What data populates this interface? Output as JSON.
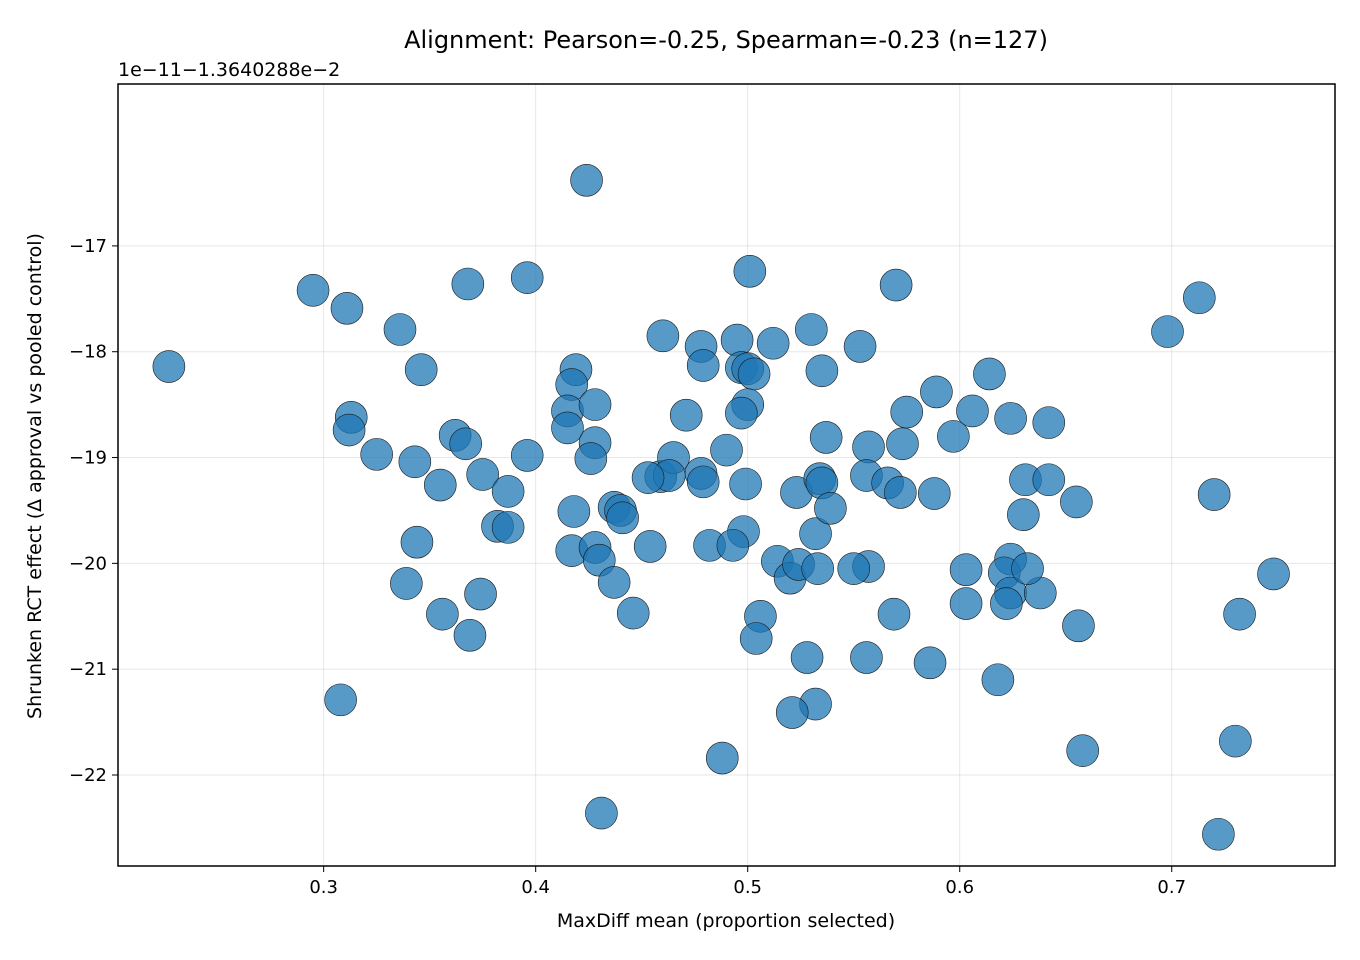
{
  "chart_data": {
    "type": "scatter",
    "title": "Alignment: Pearson=-0.25, Spearman=-0.23 (n=127)",
    "xlabel": "MaxDiff mean (proportion selected)",
    "ylabel": "Shrunken RCT effect (Δ approval vs pooled control)",
    "y_offset_text": "1e−11−1.3640288e−2",
    "xlim": [
      0.203,
      0.777
    ],
    "ylim": [
      -22.86,
      -15.47
    ],
    "xticks": [
      0.3,
      0.4,
      0.5,
      0.6,
      0.7
    ],
    "xtick_labels": [
      "0.3",
      "0.4",
      "0.5",
      "0.6",
      "0.7"
    ],
    "yticks": [
      -17,
      -18,
      -19,
      -20,
      -21,
      -22
    ],
    "ytick_labels": [
      "−17",
      "−18",
      "−19",
      "−20",
      "−21",
      "−22"
    ],
    "grid": true,
    "point_color": "#1f77b4",
    "point_alpha": 0.75,
    "x": [
      0.227,
      0.295,
      0.311,
      0.336,
      0.346,
      0.368,
      0.396,
      0.313,
      0.312,
      0.325,
      0.343,
      0.355,
      0.362,
      0.367,
      0.375,
      0.387,
      0.382,
      0.387,
      0.344,
      0.339,
      0.356,
      0.369,
      0.374,
      0.308,
      0.424,
      0.419,
      0.417,
      0.415,
      0.415,
      0.428,
      0.428,
      0.426,
      0.396,
      0.418,
      0.417,
      0.428,
      0.43,
      0.437,
      0.44,
      0.441,
      0.437,
      0.446,
      0.454,
      0.459,
      0.465,
      0.463,
      0.471,
      0.453,
      0.46,
      0.478,
      0.479,
      0.478,
      0.479,
      0.49,
      0.495,
      0.501,
      0.497,
      0.5,
      0.503,
      0.5,
      0.497,
      0.499,
      0.498,
      0.482,
      0.493,
      0.506,
      0.504,
      0.512,
      0.514,
      0.52,
      0.524,
      0.523,
      0.53,
      0.532,
      0.534,
      0.535,
      0.535,
      0.532,
      0.539,
      0.537,
      0.528,
      0.533,
      0.521,
      0.553,
      0.57,
      0.557,
      0.556,
      0.573,
      0.575,
      0.566,
      0.572,
      0.557,
      0.55,
      0.569,
      0.556,
      0.589,
      0.588,
      0.597,
      0.586,
      0.606,
      0.614,
      0.603,
      0.603,
      0.624,
      0.631,
      0.63,
      0.624,
      0.618,
      0.621,
      0.624,
      0.622,
      0.638,
      0.632,
      0.642,
      0.642,
      0.655,
      0.656,
      0.658,
      0.698,
      0.713,
      0.72,
      0.73,
      0.732,
      0.722,
      0.748,
      0.488,
      0.431
    ],
    "y": [
      -18.14,
      -17.42,
      -17.59,
      -17.79,
      -18.17,
      -17.36,
      -17.3,
      -18.62,
      -18.74,
      -18.97,
      -19.04,
      -19.26,
      -18.79,
      -18.87,
      -19.16,
      -19.32,
      -19.65,
      -19.66,
      -19.8,
      -20.19,
      -20.48,
      -20.68,
      -20.29,
      -21.29,
      -16.38,
      -18.17,
      -18.31,
      -18.56,
      -18.72,
      -18.5,
      -18.86,
      -19.01,
      -18.98,
      -19.51,
      -19.88,
      -19.85,
      -19.97,
      -19.47,
      -19.5,
      -19.57,
      -20.18,
      -20.47,
      -19.84,
      -19.18,
      -19.0,
      -19.17,
      -18.6,
      -19.19,
      -17.85,
      -17.95,
      -18.13,
      -19.15,
      -19.23,
      -18.93,
      -17.89,
      -17.24,
      -18.15,
      -18.16,
      -18.21,
      -18.5,
      -18.58,
      -19.25,
      -19.7,
      -19.83,
      -19.83,
      -20.5,
      -20.71,
      -17.92,
      -19.98,
      -20.14,
      -20.01,
      -19.33,
      -17.79,
      -19.72,
      -19.2,
      -19.24,
      -18.18,
      -21.33,
      -19.48,
      -18.81,
      -20.89,
      -20.05,
      -21.41,
      -17.95,
      -17.37,
      -18.9,
      -19.17,
      -18.87,
      -18.57,
      -19.24,
      -19.33,
      -20.03,
      -20.05,
      -20.48,
      -20.89,
      -18.38,
      -19.34,
      -18.8,
      -20.94,
      -18.56,
      -18.21,
      -20.06,
      -20.38,
      -18.63,
      -19.21,
      -19.54,
      -19.96,
      -21.1,
      -20.09,
      -20.28,
      -20.38,
      -20.28,
      -20.05,
      -18.67,
      -19.21,
      -19.42,
      -20.59,
      -21.77,
      -17.81,
      -17.49,
      -19.35,
      -21.68,
      -20.48,
      -22.56,
      -20.1,
      -21.84,
      -22.36
    ]
  }
}
